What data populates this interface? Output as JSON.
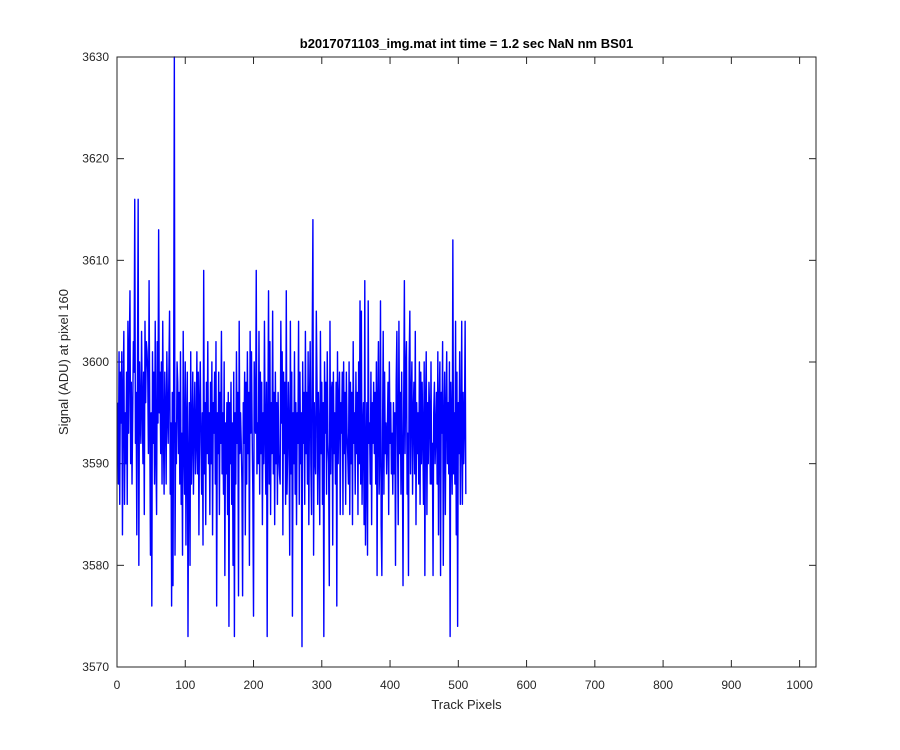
{
  "chart_data": {
    "type": "line",
    "title": "b2017071103_img.mat int time = 1.2 sec  NaN nm BS01",
    "xlabel": "Track Pixels",
    "ylabel": "Signal (ADU) at pixel 160",
    "xlim": [
      0,
      1024
    ],
    "ylim": [
      3570,
      3630
    ],
    "x_ticks": [
      0,
      100,
      200,
      300,
      400,
      500,
      600,
      700,
      800,
      900,
      1000
    ],
    "y_ticks": [
      3570,
      3580,
      3590,
      3600,
      3610,
      3620,
      3630
    ],
    "x_tick_labels": [
      "0",
      "100",
      "200",
      "300",
      "400",
      "500",
      "600",
      "700",
      "800",
      "900",
      "1000"
    ],
    "y_tick_labels": [
      "3570",
      "3580",
      "3590",
      "3600",
      "3610",
      "3620",
      "3630"
    ],
    "grid": false,
    "series": [
      {
        "color": "#0000ff",
        "x_start": 1,
        "x_step": 1,
        "values": [
          3596,
          3588,
          3601,
          3586,
          3599,
          3594,
          3601,
          3583,
          3597,
          3603,
          3586,
          3595,
          3590,
          3599,
          3586,
          3604,
          3593,
          3601,
          3607,
          3590,
          3598,
          3588,
          3595,
          3602,
          3599,
          3616,
          3592,
          3597,
          3583,
          3599,
          3616,
          3580,
          3600,
          3595,
          3592,
          3603,
          3596,
          3590,
          3599,
          3585,
          3604,
          3596,
          3602,
          3601,
          3599,
          3591,
          3608,
          3594,
          3581,
          3595,
          3576,
          3601,
          3592,
          3599,
          3588,
          3604,
          3591,
          3585,
          3602,
          3594,
          3613,
          3595,
          3599,
          3591,
          3600,
          3588,
          3604,
          3593,
          3587,
          3599,
          3595,
          3588,
          3601,
          3595,
          3592,
          3599,
          3605,
          3587,
          3594,
          3576,
          3597,
          3578,
          3598,
          3630,
          3581,
          3594,
          3590,
          3600,
          3598,
          3591,
          3597,
          3588,
          3601,
          3586,
          3593,
          3581,
          3603,
          3592,
          3587,
          3600,
          3582,
          3594,
          3599,
          3573,
          3590,
          3596,
          3580,
          3601,
          3588,
          3593,
          3599,
          3587,
          3594,
          3598,
          3589,
          3592,
          3601,
          3589,
          3599,
          3583,
          3596,
          3600,
          3592,
          3587,
          3595,
          3582,
          3609,
          3589,
          3596,
          3584,
          3598,
          3591,
          3602,
          3590,
          3595,
          3585,
          3598,
          3590,
          3600,
          3583,
          3596,
          3593,
          3599,
          3588,
          3602,
          3576,
          3595,
          3591,
          3599,
          3585,
          3597,
          3592,
          3603,
          3589,
          3595,
          3587,
          3600,
          3579,
          3594,
          3589,
          3596,
          3585,
          3597,
          3574,
          3596,
          3590,
          3598,
          3586,
          3594,
          3580,
          3599,
          3573,
          3595,
          3588,
          3601,
          3592,
          3597,
          3577,
          3604,
          3591,
          3595,
          3592,
          3588,
          3577,
          3596,
          3592,
          3599,
          3583,
          3598,
          3588,
          3601,
          3591,
          3597,
          3580,
          3603,
          3593,
          3601,
          3593,
          3587,
          3575,
          3600,
          3594,
          3593,
          3609,
          3589,
          3594,
          3590,
          3603,
          3587,
          3599,
          3591,
          3598,
          3584,
          3595,
          3590,
          3604,
          3593,
          3587,
          3598,
          3573,
          3594,
          3607,
          3588,
          3602,
          3585,
          3596,
          3591,
          3605,
          3589,
          3597,
          3584,
          3599,
          3590,
          3596,
          3586,
          3597,
          3591,
          3589,
          3588,
          3604,
          3594,
          3601,
          3583,
          3599,
          3591,
          3598,
          3586,
          3607,
          3587,
          3591,
          3598,
          3593,
          3581,
          3604,
          3589,
          3599,
          3575,
          3595,
          3590,
          3601,
          3587,
          3596,
          3584,
          3595,
          3592,
          3604,
          3586,
          3599,
          3590,
          3595,
          3572,
          3600,
          3592,
          3597,
          3586,
          3603,
          3591,
          3597,
          3588,
          3601,
          3584,
          3596,
          3602,
          3590,
          3585,
          3602,
          3614,
          3581,
          3596,
          3591,
          3589,
          3605,
          3598,
          3586,
          3597,
          3593,
          3584,
          3603,
          3591,
          3598,
          3586,
          3596,
          3573,
          3600,
          3593,
          3598,
          3587,
          3601,
          3592,
          3590,
          3578,
          3604,
          3589,
          3597,
          3598,
          3582,
          3599,
          3591,
          3595,
          3588,
          3598,
          3576,
          3601,
          3590,
          3596,
          3599,
          3585,
          3596,
          3593,
          3599,
          3585,
          3600,
          3591,
          3597,
          3586,
          3599,
          3593,
          3591,
          3588,
          3600,
          3585,
          3598,
          3590,
          3597,
          3584,
          3602,
          3592,
          3595,
          3587,
          3599,
          3591,
          3597,
          3585,
          3600,
          3590,
          3606,
          3588,
          3605,
          3586,
          3593,
          3596,
          3584,
          3608,
          3582,
          3590,
          3596,
          3581,
          3606,
          3592,
          3594,
          3588,
          3599,
          3584,
          3596,
          3592,
          3598,
          3591,
          3597,
          3588,
          3600,
          3579,
          3596,
          3602,
          3587,
          3591,
          3606,
          3584,
          3579,
          3593,
          3603,
          3587,
          3599,
          3591,
          3594,
          3589,
          3593,
          3598,
          3585,
          3600,
          3592,
          3596,
          3589,
          3593,
          3587,
          3596,
          3589,
          3595,
          3580,
          3598,
          3603,
          3592,
          3584,
          3604,
          3591,
          3597,
          3587,
          3599,
          3591,
          3578,
          3596,
          3608,
          3591,
          3599,
          3602,
          3587,
          3593,
          3579,
          3600,
          3605,
          3589,
          3596,
          3600,
          3587,
          3595,
          3598,
          3589,
          3603,
          3584,
          3596,
          3591,
          3595,
          3588,
          3600,
          3586,
          3599,
          3590,
          3598,
          3593,
          3586,
          3600,
          3579,
          3596,
          3601,
          3585,
          3596,
          3590,
          3598,
          3595,
          3588,
          3600,
          3588,
          3592,
          3579,
          3595,
          3598,
          3590,
          3593,
          3597,
          3588,
          3601,
          3583,
          3596,
          3600,
          3579,
          3597,
          3593,
          3602,
          3580,
          3594,
          3599,
          3585,
          3595,
          3601,
          3590,
          3596,
          3589,
          3600,
          3573,
          3598,
          3593,
          3587,
          3612,
          3589,
          3595,
          3588,
          3604,
          3583,
          3599,
          3574,
          3596,
          3591,
          3601,
          3586,
          3593,
          3604,
          3586,
          3597,
          3590,
          3594,
          3604,
          3587
        ]
      }
    ]
  }
}
